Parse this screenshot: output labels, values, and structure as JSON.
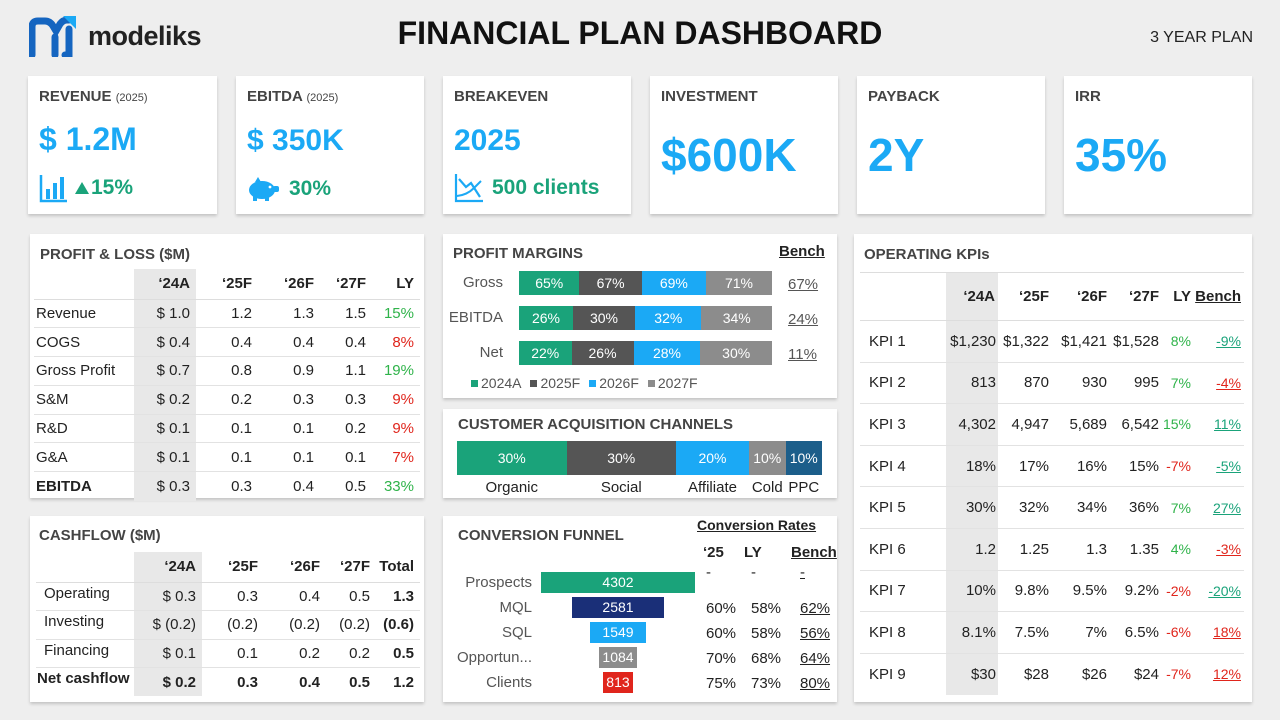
{
  "brand": {
    "name": "modeliks",
    "primary_color": "#1565c0",
    "accent_color": "#1ba9f5"
  },
  "header": {
    "title": "FINANCIAL PLAN DASHBOARD",
    "plan_label": "3 YEAR PLAN"
  },
  "kpis": {
    "revenue": {
      "title": "REVENUE",
      "year": "(2025)",
      "value": "$ 1.2M",
      "change": "15%"
    },
    "ebitda": {
      "title": "EBITDA",
      "year": "(2025)",
      "value": "$ 350K",
      "change": "30%"
    },
    "breakeven": {
      "title": "BREAKEVEN",
      "value": "2025",
      "sub": "500 clients"
    },
    "investment": {
      "title": "INVESTMENT",
      "value": "$600K"
    },
    "payback": {
      "title": "PAYBACK",
      "value": "2Y"
    },
    "irr": {
      "title": "IRR",
      "value": "35%"
    }
  },
  "pnl": {
    "title": "PROFIT & LOSS ($M)",
    "headers": [
      "",
      "‘24A",
      "‘25F",
      "‘26F",
      "‘27F",
      "LY"
    ],
    "rows": [
      {
        "label": "Revenue",
        "a": "$ 1.0",
        "f25": "1.2",
        "f26": "1.3",
        "f27": "1.5",
        "ly": "15%"
      },
      {
        "label": "COGS",
        "a": "$ 0.4",
        "f25": "0.4",
        "f26": "0.4",
        "f27": "0.4",
        "ly": "8%"
      },
      {
        "label": "Gross Profit",
        "a": "$ 0.7",
        "f25": "0.8",
        "f26": "0.9",
        "f27": "1.1",
        "ly": "19%"
      },
      {
        "label": "S&M",
        "a": "$ 0.2",
        "f25": "0.2",
        "f26": "0.3",
        "f27": "0.3",
        "ly": "9%"
      },
      {
        "label": "R&D",
        "a": "$ 0.1",
        "f25": "0.1",
        "f26": "0.1",
        "f27": "0.2",
        "ly": "9%"
      },
      {
        "label": "G&A",
        "a": "$ 0.1",
        "f25": "0.1",
        "f26": "0.1",
        "f27": "0.1",
        "ly": "7%"
      },
      {
        "label": "EBITDA",
        "a": "$ 0.3",
        "f25": "0.3",
        "f26": "0.4",
        "f27": "0.5",
        "ly": "33%"
      }
    ]
  },
  "cashflow": {
    "title": "CASHFLOW ($M)",
    "headers": [
      "",
      "‘24A",
      "‘25F",
      "‘26F",
      "‘27F",
      "Total"
    ],
    "rows": [
      {
        "label": "Operating",
        "a": "$  0.3",
        "f25": "0.3",
        "f26": "0.4",
        "f27": "0.5",
        "total": "1.3"
      },
      {
        "label": "Investing",
        "a": "$ (0.2)",
        "f25": "(0.2)",
        "f26": "(0.2)",
        "f27": "(0.2)",
        "total": "(0.6)"
      },
      {
        "label": "Financing",
        "a": "$ 0.1",
        "f25": "0.1",
        "f26": "0.2",
        "f27": "0.2",
        "total": "0.5"
      },
      {
        "label": "Net cashflow",
        "a": "$ 0.2",
        "f25": "0.3",
        "f26": "0.4",
        "f27": "0.5",
        "total": "1.2"
      }
    ]
  },
  "margins": {
    "title": "PROFIT MARGINS",
    "bench_label": "Bench",
    "rows": [
      {
        "label": "Gross",
        "values": [
          "65%",
          "67%",
          "69%",
          "71%"
        ],
        "bench": "67%"
      },
      {
        "label": "EBITDA",
        "values": [
          "26%",
          "30%",
          "32%",
          "34%"
        ],
        "bench": "24%"
      },
      {
        "label": "Net",
        "values": [
          "22%",
          "26%",
          "28%",
          "30%"
        ],
        "bench": "11%"
      }
    ],
    "legend": [
      "2024A",
      "2025F",
      "2026F",
      "2027F"
    ],
    "colors": [
      "#1aa37a",
      "#555555",
      "#1ba9f5",
      "#8c8c8c"
    ]
  },
  "channels": {
    "title": "CUSTOMER ACQUISITION CHANNELS",
    "items": [
      {
        "label": "Organic",
        "share": "30%",
        "color": "#1aa37a"
      },
      {
        "label": "Social",
        "share": "30%",
        "color": "#555555"
      },
      {
        "label": "Affiliate",
        "share": "20%",
        "color": "#1ba9f5"
      },
      {
        "label": "Cold",
        "share": "10%",
        "color": "#8c8c8c"
      },
      {
        "label": "PPC",
        "share": "10%",
        "color": "#1c5e8a"
      }
    ]
  },
  "funnel": {
    "title": "CONVERSION FUNNEL",
    "rates_title": "Conversion Rates",
    "headers": [
      "‘25",
      "LY",
      "Bench"
    ],
    "stages": [
      {
        "label": "Prospects",
        "value": 4302,
        "color": "#1aa37a",
        "r25": "-",
        "ly": "-",
        "bench": "-"
      },
      {
        "label": "MQL",
        "value": 2581,
        "color": "#1a2f78",
        "r25": "60%",
        "ly": "58%",
        "bench": "62%"
      },
      {
        "label": "SQL",
        "value": 1549,
        "color": "#1ba9f5",
        "r25": "60%",
        "ly": "58%",
        "bench": "56%"
      },
      {
        "label": "Opportun...",
        "value": 1084,
        "color": "#8c8c8c",
        "r25": "70%",
        "ly": "68%",
        "bench": "64%"
      },
      {
        "label": "Clients",
        "value": 813,
        "color": "#e0251c",
        "r25": "75%",
        "ly": "73%",
        "bench": "80%"
      }
    ]
  },
  "opkpis": {
    "title": "OPERATING KPIs",
    "headers": [
      "",
      "‘24A",
      "‘25F",
      "‘26F",
      "‘27F",
      "LY",
      "Bench"
    ],
    "rows": [
      {
        "label": "KPI 1",
        "a": "$1,230",
        "f25": "$1,322",
        "f26": "$1,421",
        "f27": "$1,528",
        "ly": "8%",
        "bench": "-9%",
        "ly_pos": true,
        "bench_pos": true
      },
      {
        "label": "KPI 2",
        "a": "813",
        "f25": "870",
        "f26": "930",
        "f27": "995",
        "ly": "7%",
        "bench": "-4%",
        "ly_pos": true,
        "bench_pos": false
      },
      {
        "label": "KPI 3",
        "a": "4,302",
        "f25": "4,947",
        "f26": "5,689",
        "f27": "6,542",
        "ly": "15%",
        "bench": "11%",
        "ly_pos": true,
        "bench_pos": true
      },
      {
        "label": "KPI 4",
        "a": "18%",
        "f25": "17%",
        "f26": "16%",
        "f27": "15%",
        "ly": "-7%",
        "bench": "-5%",
        "ly_pos": false,
        "bench_pos": true
      },
      {
        "label": "KPI 5",
        "a": "30%",
        "f25": "32%",
        "f26": "34%",
        "f27": "36%",
        "ly": "7%",
        "bench": "27%",
        "ly_pos": true,
        "bench_pos": true
      },
      {
        "label": "KPI 6",
        "a": "1.2",
        "f25": "1.25",
        "f26": "1.3",
        "f27": "1.35",
        "ly": "4%",
        "bench": "-3%",
        "ly_pos": true,
        "bench_pos": false
      },
      {
        "label": "KPI 7",
        "a": "10%",
        "f25": "9.8%",
        "f26": "9.5%",
        "f27": "9.2%",
        "ly": "-2%",
        "bench": "-20%",
        "ly_pos": false,
        "bench_pos": true
      },
      {
        "label": "KPI 8",
        "a": "8.1%",
        "f25": "7.5%",
        "f26": "7%",
        "f27": "6.5%",
        "ly": "-6%",
        "bench": "18%",
        "ly_pos": true,
        "bench_pos": false
      },
      {
        "label": "KPI 9",
        "a": "$30",
        "f25": "$28",
        "f26": "$26",
        "f27": "$24",
        "ly": "-7%",
        "bench": "12%",
        "ly_pos": true,
        "bench_pos": false
      }
    ]
  }
}
